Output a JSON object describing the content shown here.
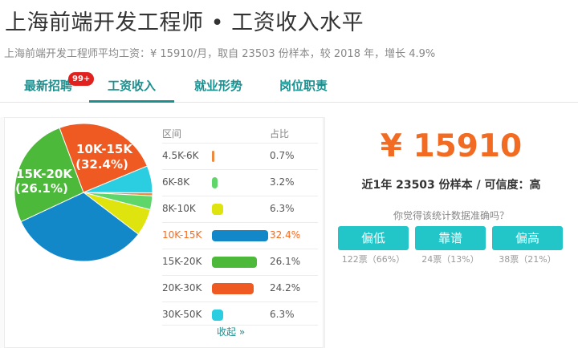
{
  "header": {
    "title": "上海前端开发工程师 • 工资收入水平",
    "subtitle": "上海前端开发工程师平均工资：¥ 15910/月，取自 23503 份样本，较 2018 年，增长 4.9%"
  },
  "tabs": [
    {
      "label": "最新招聘",
      "badge": "99+"
    },
    {
      "label": "工资收入"
    },
    {
      "label": "就业形势"
    },
    {
      "label": "岗位职责"
    }
  ],
  "table": {
    "col_range": "区间",
    "col_pct": "占比",
    "rows": [
      {
        "range": "4.5K-6K",
        "pct": "0.7%"
      },
      {
        "range": "6K-8K",
        "pct": "3.2%"
      },
      {
        "range": "8K-10K",
        "pct": "6.3%"
      },
      {
        "range": "10K-15K",
        "pct": "32.4%"
      },
      {
        "range": "15K-20K",
        "pct": "26.1%"
      },
      {
        "range": "20K-30K",
        "pct": "24.2%"
      },
      {
        "range": "30K-50K",
        "pct": "6.3%"
      }
    ],
    "collapse_label": "收起 »"
  },
  "pie_labels": {
    "a_range": "10K-15K",
    "a_pct": "(32.4%)",
    "b_range": "15K-20K",
    "b_pct": "(26.1%)"
  },
  "summary": {
    "salary": "¥ 15910",
    "sample_text": "近1年 23503 份样本 / 可信度：高",
    "question": "你觉得该统计数据准确吗？"
  },
  "votes": [
    {
      "label": "偏低",
      "count": "122票（66%）"
    },
    {
      "label": "靠谱",
      "count": "24票（13%）"
    },
    {
      "label": "偏高",
      "count": "38票（21%）"
    }
  ],
  "chart_data": {
    "type": "pie",
    "categories": [
      "4.5K-6K",
      "6K-8K",
      "8K-10K",
      "10K-15K",
      "15K-20K",
      "20K-30K",
      "30K-50K"
    ],
    "values": [
      0.7,
      3.2,
      6.3,
      32.4,
      26.1,
      24.2,
      6.3
    ],
    "colors": [
      "#ee8a3f",
      "#5fd66a",
      "#dfe30e",
      "#1288c9",
      "#4db93a",
      "#ef5a23",
      "#2bcde0"
    ]
  },
  "colors": {
    "accent": "#1c8f8f",
    "highlight": "#f26b22",
    "button": "#23c6c8",
    "badge": "#e0211d"
  }
}
